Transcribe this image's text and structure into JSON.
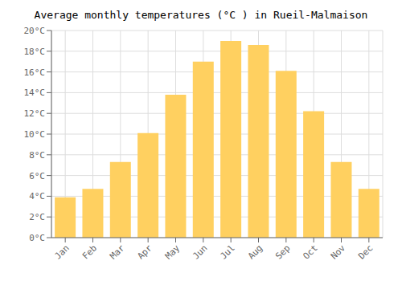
{
  "chart_data": {
    "type": "bar",
    "title": "Average monthly temperatures (°C ) in Rueil-Malmaison",
    "categories": [
      "Jan",
      "Feb",
      "Mar",
      "Apr",
      "May",
      "Jun",
      "Jul",
      "Aug",
      "Sep",
      "Oct",
      "Nov",
      "Dec"
    ],
    "values": [
      3.9,
      4.7,
      7.3,
      10.1,
      13.8,
      17.0,
      19.0,
      18.6,
      16.1,
      12.2,
      7.3,
      4.7
    ],
    "color": "#FFD060",
    "ylim": [
      0,
      20
    ],
    "yticks": [
      {
        "value": 0,
        "label": "0°C"
      },
      {
        "value": 2,
        "label": "2°C"
      },
      {
        "value": 4,
        "label": "4°C"
      },
      {
        "value": 6,
        "label": "6°C"
      },
      {
        "value": 8,
        "label": "8°C"
      },
      {
        "value": 10,
        "label": "10°C"
      },
      {
        "value": 12,
        "label": "12°C"
      },
      {
        "value": 14,
        "label": "14°C"
      },
      {
        "value": 16,
        "label": "16°C"
      },
      {
        "value": 18,
        "label": "18°C"
      },
      {
        "value": 20,
        "label": "20°C"
      }
    ],
    "grid": true
  }
}
